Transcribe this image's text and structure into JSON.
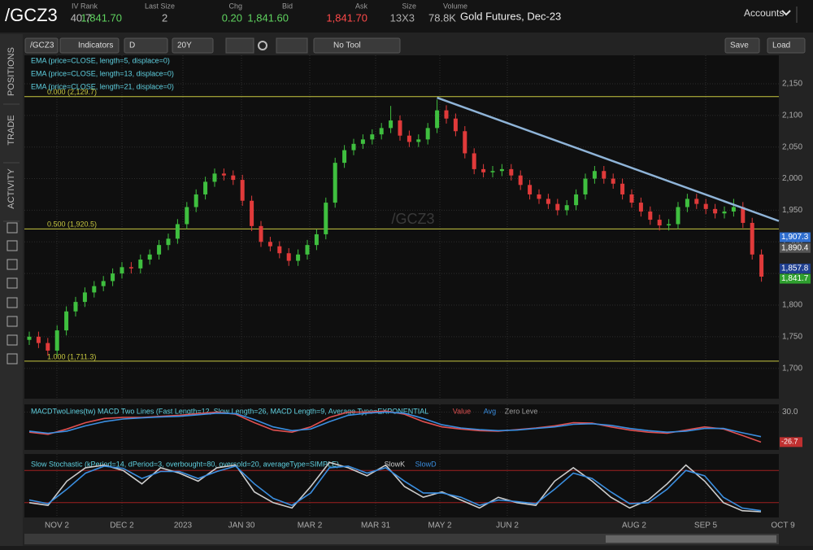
{
  "header": {
    "symbol": "/GCZ3",
    "stats": [
      {
        "label": "IV Rank",
        "value": "40.7",
        "color": "#bbbbbb"
      },
      {
        "label": "Last Size",
        "value": "1,841.70",
        "extra": "2",
        "color": "#5fd35f"
      },
      {
        "label": "Chg",
        "value": "0.20",
        "color": "#5fd35f"
      },
      {
        "label": "Bid",
        "value": "1,841.60",
        "color": "#5fd35f"
      },
      {
        "label": "Ask",
        "value": "1,841.70",
        "color": "#ff4a4a"
      },
      {
        "label": "Size",
        "value": "13X3",
        "color": "#aaaaaa"
      },
      {
        "label": "Volume",
        "value": "78.8K",
        "color": "#bbbbbb"
      }
    ],
    "description": "Gold Futures, Dec-23",
    "accounts": "Accounts"
  },
  "toolbar": {
    "symbol": "/GCZ3",
    "indicators": "Indicators",
    "period": "D",
    "range": "20Y",
    "tool": "No Tool",
    "save": "Save",
    "load": "Load"
  },
  "sidebar": {
    "tabs": [
      "POSITIONS",
      "TRADE",
      "ACTIVITY"
    ]
  },
  "x_labels": [
    "NOV 2",
    "DEC 2",
    "2023",
    "JAN 30",
    "MAR 2",
    "MAR 31",
    "MAY 2",
    "JUN 2",
    "AUG 2",
    "SEP 5",
    "OCT 9"
  ],
  "chart_data": [
    {
      "type": "candlestick",
      "watermark": "/GCZ3",
      "up_color": "#3fbf3f",
      "down_color": "#e03a3a",
      "legend": [
        {
          "name": "EMA (price=CLOSE, length=5, displace=0)"
        },
        {
          "name": "EMA (price=CLOSE, length=13, displace=0)"
        },
        {
          "name": "EMA (price=CLOSE, length=21, displace=0)"
        }
      ],
      "open": [
        1745,
        1750,
        1740,
        1728,
        1760,
        1790,
        1805,
        1820,
        1830,
        1838,
        1850,
        1860,
        1858,
        1872,
        1880,
        1895,
        1905,
        1928,
        1955,
        1975,
        1995,
        2008,
        2005,
        1998,
        1965,
        1925,
        1900,
        1893,
        1882,
        1870,
        1880,
        1895,
        1912,
        1962,
        2025,
        2045,
        2055,
        2062,
        2070,
        2080,
        2092,
        2068,
        2058,
        2062,
        2080,
        2108,
        2095,
        2075,
        2040,
        2015,
        2010,
        2012,
        2015,
        2005,
        1990,
        1975,
        1968,
        1960,
        1950,
        1958,
        1975,
        2000,
        2012,
        2000,
        1992,
        1975,
        1962,
        1948,
        1935,
        1926,
        1928,
        1955,
        1968,
        1960,
        1952,
        1945,
        1948,
        1955,
        1930,
        1880
      ],
      "high": [
        1758,
        1758,
        1748,
        1768,
        1798,
        1813,
        1828,
        1838,
        1846,
        1858,
        1868,
        1868,
        1880,
        1888,
        1903,
        1913,
        1936,
        1963,
        1983,
        2003,
        2016,
        2016,
        2013,
        2006,
        1973,
        1933,
        1908,
        1901,
        1890,
        1888,
        1903,
        1920,
        1970,
        2033,
        2053,
        2063,
        2070,
        2078,
        2088,
        2115,
        2100,
        2076,
        2070,
        2088,
        2125,
        2116,
        2103,
        2083,
        2048,
        2023,
        2020,
        2023,
        2023,
        2013,
        1998,
        1983,
        1976,
        1968,
        1966,
        1983,
        2008,
        2020,
        2020,
        2008,
        2000,
        1983,
        1970,
        1956,
        1943,
        1936,
        1963,
        1976,
        1976,
        1968,
        1960,
        1956,
        1968,
        1963,
        1938,
        1888
      ],
      "low": [
        1737,
        1732,
        1720,
        1720,
        1752,
        1782,
        1797,
        1812,
        1822,
        1830,
        1842,
        1850,
        1850,
        1864,
        1872,
        1887,
        1897,
        1920,
        1947,
        1967,
        1987,
        1997,
        1990,
        1957,
        1917,
        1892,
        1885,
        1874,
        1862,
        1862,
        1872,
        1887,
        1904,
        1954,
        2017,
        2037,
        2047,
        2054,
        2062,
        2072,
        2060,
        2050,
        2050,
        2054,
        2072,
        2087,
        2067,
        2032,
        2007,
        2002,
        2002,
        2004,
        1997,
        1982,
        1967,
        1960,
        1952,
        1942,
        1942,
        1950,
        1967,
        1992,
        1992,
        1984,
        1967,
        1954,
        1940,
        1927,
        1918,
        1918,
        1920,
        1947,
        1952,
        1944,
        1937,
        1937,
        1940,
        1922,
        1872,
        1837
      ],
      "close": [
        1750,
        1740,
        1728,
        1760,
        1790,
        1805,
        1820,
        1830,
        1838,
        1850,
        1860,
        1858,
        1872,
        1880,
        1895,
        1905,
        1928,
        1955,
        1975,
        1995,
        2008,
        2005,
        1998,
        1965,
        1925,
        1900,
        1893,
        1882,
        1870,
        1880,
        1895,
        1912,
        1962,
        2025,
        2045,
        2055,
        2062,
        2070,
        2080,
        2092,
        2068,
        2058,
        2062,
        2080,
        2108,
        2095,
        2075,
        2040,
        2015,
        2010,
        2012,
        2015,
        2005,
        1990,
        1975,
        1968,
        1960,
        1950,
        1958,
        1975,
        2000,
        2012,
        2000,
        1992,
        1975,
        1962,
        1948,
        1935,
        1926,
        1928,
        1955,
        1968,
        1960,
        1952,
        1945,
        1948,
        1955,
        1930,
        1880,
        1845
      ],
      "ylim": [
        1652,
        2195
      ],
      "yticks": [
        {
          "value": 1700,
          "label": "1,700"
        },
        {
          "value": 1750,
          "label": "1,750"
        },
        {
          "value": 1800,
          "label": "1,800"
        },
        {
          "value": 1850,
          "label": "1,850"
        },
        {
          "value": 1900,
          "label": "1,900"
        },
        {
          "value": 1950,
          "label": "1,950"
        },
        {
          "value": 2000,
          "label": "2,000"
        },
        {
          "value": 2050,
          "label": "2,050"
        },
        {
          "value": 2100,
          "label": "2,100"
        },
        {
          "value": 2150,
          "label": "2,150"
        }
      ],
      "fib_levels": [
        {
          "value": 2129.7,
          "label": "0.000 (2,129.7)"
        },
        {
          "value": 1920.5,
          "label": "0.500 (1,920.5)"
        },
        {
          "value": 1711.3,
          "label": "1.000 (1,711.3)"
        }
      ],
      "trendline": [
        2128,
        1933
      ],
      "price_labels": [
        {
          "value": 1907.3,
          "label": "1,907.3",
          "color": "#2f6fd0"
        },
        {
          "value": 1890.4,
          "label": "1,890.4",
          "color": "#555555"
        },
        {
          "value": 1857.8,
          "label": "1,857.8",
          "color": "#1f3f8f"
        },
        {
          "value": 1841.7,
          "label": "1,841.7",
          "color": "#2f9f2f"
        }
      ]
    },
    {
      "type": "line",
      "title": "MACDTwoLines(tw) MACD Two Lines (Fast Length=12, Slow Length=26, MACD Length=9, Average Type=EXPONENTIAL",
      "extra_legend": "Zero Leve",
      "series": [
        {
          "name": "Value",
          "color": "#e05050",
          "values": [
            -8,
            -12,
            -2,
            10,
            18,
            20,
            20,
            22,
            24,
            27,
            30,
            26,
            10,
            -4,
            -8,
            2,
            20,
            30,
            30,
            32,
            26,
            12,
            2,
            -2,
            -5,
            -6,
            -3,
            0,
            4,
            10,
            9,
            2,
            -4,
            -8,
            -10,
            -4,
            2,
            -2,
            -14,
            -26.7
          ]
        },
        {
          "name": "Avg",
          "color": "#3a8ee0",
          "values": [
            -6,
            -10,
            -6,
            4,
            12,
            17,
            19,
            21,
            22,
            25,
            28,
            27,
            16,
            2,
            -5,
            -2,
            12,
            24,
            28,
            30,
            28,
            18,
            6,
            0,
            -3,
            -5,
            -4,
            -1,
            2,
            7,
            8,
            5,
            -1,
            -5,
            -8,
            -6,
            -1,
            -1,
            -9,
            -16.5
          ]
        }
      ],
      "ylim": [
        -40,
        40
      ],
      "yticks": [
        {
          "value": 30,
          "label": "30.0"
        }
      ],
      "value_label": {
        "value": -26.7,
        "label": "-26.7"
      }
    },
    {
      "type": "line",
      "title": "Slow Stochastic (kPeriod=14, dPeriod=3, overbought=80, oversold=20, averageType=SIMPLE)",
      "levels": [
        80,
        20
      ],
      "series": [
        {
          "name": "SlowK",
          "color": "#cccccc",
          "values": [
            20,
            15,
            60,
            85,
            90,
            80,
            55,
            85,
            75,
            60,
            85,
            90,
            40,
            20,
            10,
            50,
            95,
            85,
            70,
            90,
            50,
            30,
            40,
            25,
            10,
            30,
            20,
            15,
            60,
            85,
            60,
            30,
            10,
            25,
            55,
            90,
            60,
            20,
            5,
            3
          ]
        },
        {
          "name": "SlowD",
          "color": "#3a8ee0",
          "values": [
            25,
            18,
            45,
            75,
            88,
            84,
            65,
            78,
            78,
            65,
            78,
            88,
            55,
            28,
            15,
            38,
            85,
            88,
            75,
            85,
            60,
            38,
            38,
            30,
            15,
            25,
            22,
            18,
            45,
            75,
            65,
            40,
            18,
            20,
            45,
            80,
            70,
            30,
            10,
            5
          ]
        }
      ],
      "ylim": [
        0,
        100
      ]
    }
  ]
}
